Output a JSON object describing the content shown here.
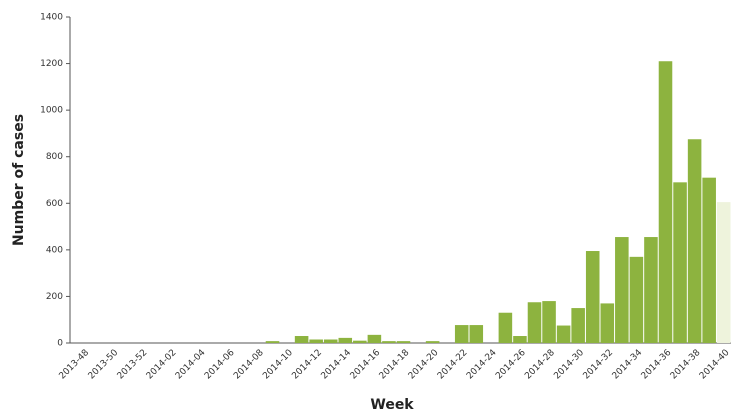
{
  "chart_data": {
    "type": "bar",
    "y_label": "Number of cases",
    "x_label": "Week",
    "categories": [
      "2013-48",
      null,
      "2013-50",
      null,
      "2013-52",
      null,
      "2014-02",
      null,
      "2014-04",
      null,
      "2014-06",
      null,
      "2014-08",
      null,
      "2014-10",
      null,
      "2014-12",
      null,
      "2014-14",
      null,
      "2014-16",
      null,
      "2014-18",
      null,
      "2014-20",
      null,
      "2014-22",
      null,
      "2014-24",
      null,
      "2014-26",
      null,
      "2014-28",
      null,
      "2014-30",
      null,
      "2014-32",
      null,
      "2014-34",
      null,
      "2014-36",
      null,
      "2014-38",
      null,
      "2014-40"
    ],
    "values": [
      0,
      0,
      0,
      0,
      0,
      0,
      0,
      0,
      0,
      0,
      0,
      0,
      0,
      8,
      0,
      30,
      15,
      15,
      22,
      10,
      35,
      8,
      8,
      0,
      8,
      0,
      77,
      77,
      0,
      130,
      30,
      175,
      180,
      75,
      150,
      395,
      170,
      455,
      370,
      455,
      1210,
      690,
      875,
      710,
      605
    ],
    "colors": [
      "#8db33f",
      "#8db33f",
      "#8db33f",
      "#8db33f",
      "#8db33f",
      "#8db33f",
      "#8db33f",
      "#8db33f",
      "#8db33f",
      "#8db33f",
      "#8db33f",
      "#8db33f",
      "#8db33f",
      "#8db33f",
      "#8db33f",
      "#8db33f",
      "#8db33f",
      "#8db33f",
      "#8db33f",
      "#8db33f",
      "#8db33f",
      "#8db33f",
      "#8db33f",
      "#8db33f",
      "#8db33f",
      "#8db33f",
      "#8db33f",
      "#8db33f",
      "#8db33f",
      "#8db33f",
      "#8db33f",
      "#8db33f",
      "#8db33f",
      "#8db33f",
      "#8db33f",
      "#8db33f",
      "#8db33f",
      "#8db33f",
      "#8db33f",
      "#8db33f",
      "#8db33f",
      "#8db33f",
      "#8db33f",
      "#8db33f",
      "#eef3dc"
    ],
    "ylim": [
      0,
      1400
    ],
    "yticks": [
      0,
      200,
      400,
      600,
      800,
      1000,
      1200,
      1400
    ],
    "grid": false
  }
}
